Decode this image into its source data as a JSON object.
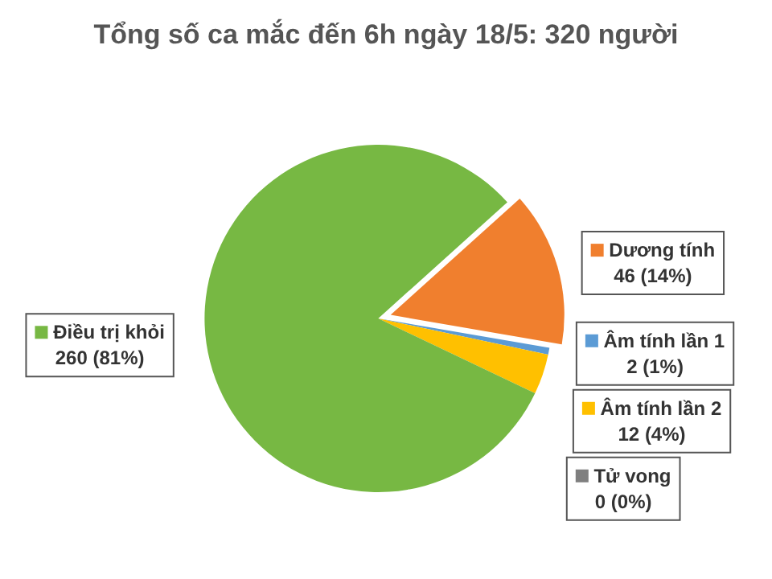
{
  "chart_data": {
    "type": "pie",
    "title": "Tổng số ca mắc đến 6h ngày 18/5: 320 người",
    "categories": [
      "Dương tính",
      "Âm tính lần 1",
      "Âm tính lần 2",
      "Tử vong",
      "Điều trị khỏi"
    ],
    "values": [
      46,
      2,
      12,
      0,
      260
    ],
    "value_labels": [
      "46 (14%)",
      "2 (1%)",
      "12 (4%)",
      "0 (0%)",
      "260 (81%)"
    ],
    "colors": [
      "#f07f2e",
      "#5b9bd5",
      "#ffc000",
      "#7f7f7f",
      "#77b843"
    ],
    "legend": "right"
  }
}
